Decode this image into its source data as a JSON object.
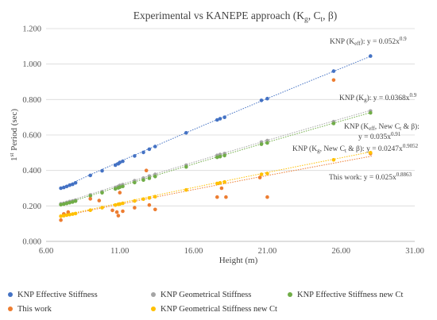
{
  "chart_data": {
    "type": "scatter",
    "title": "Experimental vs KANEPE approach (K",
    "title_sub1": "g",
    "title_mid": ", C",
    "title_sub2": "t",
    "title_end": ", β)",
    "xlabel": "Height (m)",
    "ylabel_pre": "1",
    "ylabel_sup": "st",
    "ylabel_post": " Period (sec)",
    "xlim": [
      6.0,
      31.0
    ],
    "ylim": [
      0.0,
      1.2
    ],
    "x_ticks": [
      "6.00",
      "11.00",
      "16.00",
      "21.00",
      "26.00",
      "31.00"
    ],
    "y_ticks": [
      "0.000",
      "0.200",
      "0.400",
      "0.600",
      "0.800",
      "1.000",
      "1.200"
    ],
    "grid": "horizontal",
    "legend_position": "bottom",
    "colors": {
      "knp_eff": "#4472C4",
      "knp_geo": "#A5A5A5",
      "knp_eff_new": "#70AD47",
      "this_work": "#ED7D31",
      "knp_geo_new": "#FFC000"
    },
    "series": [
      {
        "name": "KNP Effective Stiffness",
        "color": "#4472C4",
        "x": [
          7.0,
          7.2,
          7.4,
          7.6,
          7.8,
          8.0,
          9.0,
          9.8,
          10.7,
          10.9,
          11.0,
          11.2,
          12.0,
          12.6,
          13.0,
          13.4,
          15.5,
          17.6,
          17.8,
          18.1,
          20.6,
          21.0,
          25.5,
          28.0
        ],
        "y": [
          0.3,
          0.304,
          0.31,
          0.317,
          0.322,
          0.33,
          0.372,
          0.398,
          0.43,
          0.438,
          0.445,
          0.452,
          0.482,
          0.502,
          0.52,
          0.535,
          0.612,
          0.685,
          0.692,
          0.7,
          0.795,
          0.805,
          0.96,
          1.045
        ]
      },
      {
        "name": "KNP Geometrical Stiffness",
        "color": "#A5A5A5",
        "x": [
          7.0,
          7.2,
          7.4,
          7.6,
          7.8,
          8.0,
          9.0,
          9.8,
          10.7,
          10.9,
          11.0,
          11.2,
          12.0,
          12.6,
          13.0,
          13.4,
          15.5,
          17.6,
          17.8,
          18.1,
          20.6,
          21.0,
          25.5,
          28.0
        ],
        "y": [
          0.212,
          0.215,
          0.22,
          0.225,
          0.228,
          0.233,
          0.262,
          0.28,
          0.304,
          0.31,
          0.315,
          0.32,
          0.342,
          0.357,
          0.368,
          0.378,
          0.43,
          0.485,
          0.49,
          0.495,
          0.56,
          0.568,
          0.675,
          0.735
        ]
      },
      {
        "name": "KNP Effective Stiffness new Ct",
        "color": "#70AD47",
        "x": [
          7.0,
          7.2,
          7.4,
          7.6,
          7.8,
          8.0,
          9.0,
          9.8,
          10.7,
          10.9,
          11.0,
          11.2,
          12.0,
          12.6,
          13.0,
          13.4,
          15.5,
          17.6,
          17.8,
          18.1,
          20.6,
          21.0,
          25.5,
          28.0
        ],
        "y": [
          0.207,
          0.21,
          0.214,
          0.218,
          0.222,
          0.227,
          0.256,
          0.274,
          0.296,
          0.302,
          0.306,
          0.31,
          0.332,
          0.346,
          0.356,
          0.366,
          0.42,
          0.474,
          0.478,
          0.484,
          0.548,
          0.555,
          0.665,
          0.725
        ]
      },
      {
        "name": "This work",
        "color": "#ED7D31",
        "x": [
          7.0,
          7.2,
          7.5,
          9.0,
          9.6,
          10.5,
          10.8,
          10.9,
          11.0,
          11.2,
          12.0,
          12.8,
          13.0,
          13.4,
          17.6,
          17.9,
          18.2,
          20.5,
          21.0,
          25.5,
          28.0
        ],
        "y": [
          0.12,
          0.155,
          0.165,
          0.24,
          0.23,
          0.175,
          0.165,
          0.145,
          0.275,
          0.17,
          0.19,
          0.4,
          0.205,
          0.18,
          0.25,
          0.3,
          0.25,
          0.36,
          0.25,
          0.91,
          0.495
        ]
      },
      {
        "name": "KNP Geometrical Stiffness new Ct",
        "color": "#FFC000",
        "x": [
          7.0,
          7.2,
          7.4,
          7.6,
          7.8,
          8.0,
          9.0,
          9.8,
          10.7,
          10.9,
          11.0,
          11.2,
          12.0,
          12.6,
          13.0,
          13.4,
          15.5,
          17.6,
          17.8,
          18.1,
          20.6,
          21.0,
          25.5,
          28.0
        ],
        "y": [
          0.142,
          0.145,
          0.148,
          0.151,
          0.154,
          0.157,
          0.176,
          0.19,
          0.205,
          0.209,
          0.211,
          0.215,
          0.228,
          0.238,
          0.245,
          0.252,
          0.29,
          0.327,
          0.33,
          0.335,
          0.378,
          0.383,
          0.46,
          0.5
        ]
      }
    ],
    "trendlines": [
      {
        "color": "#4472C4",
        "a": 0.052,
        "b": 0.9
      },
      {
        "color": "#A5A5A5",
        "a": 0.0368,
        "b": 0.9
      },
      {
        "color": "#70AD47",
        "a": 0.035,
        "b": 0.91
      },
      {
        "color": "#ED7D31",
        "a": 0.025,
        "b": 0.8863
      },
      {
        "color": "#FFC000",
        "a": 0.0247,
        "b": 0.9052
      }
    ],
    "annotations": [
      {
        "id": "ann1",
        "pre": "KNP (K",
        "sub": "eff",
        "mid": "): y = 0.052x",
        "sup": "0.9"
      },
      {
        "id": "ann2",
        "pre": "KNP (K",
        "sub": "g",
        "mid": "): y = 0.0368x",
        "sup": "0.9"
      },
      {
        "id": "ann3",
        "pre": "KNP (K",
        "sub": "eff",
        "mid": ", New C",
        "sub2": "t",
        "mid2": " & β):",
        "line2_pre": "y = 0.035x",
        "line2_sup": "0.91"
      },
      {
        "id": "ann4",
        "pre": "KNP (K",
        "sub": "g",
        "mid": ", New C",
        "sub2": "t",
        "mid2": " & β): y = 0.0247x",
        "sup": "0.9052"
      },
      {
        "id": "ann5",
        "pre": "This work: y = 0.025x",
        "sup": "0.8863"
      }
    ]
  }
}
